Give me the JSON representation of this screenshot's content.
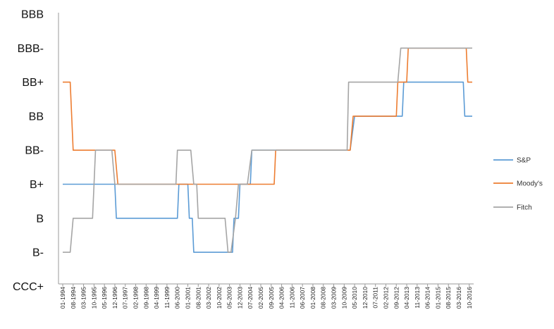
{
  "chart_data": {
    "type": "line",
    "title": "",
    "xlabel": "",
    "ylabel": "",
    "y_categories": [
      "CCC+",
      "B-",
      "B",
      "B+",
      "BB-",
      "BB",
      "BB+",
      "BBB-",
      "BBB"
    ],
    "x_ticks": [
      "01-1994",
      "08-1994",
      "03-1995",
      "10-1995",
      "05-1996",
      "12-1996",
      "07-1997",
      "02-1998",
      "09-1998",
      "04-1999",
      "11-1999",
      "06-2000",
      "01-2001",
      "08-2001",
      "03-2002",
      "10-2002",
      "05-2003",
      "12-2003",
      "07-2004",
      "02-2005",
      "09-2005",
      "04-2006",
      "11-2006",
      "06-2007",
      "01-2008",
      "08-2008",
      "03-2009",
      "10-2009",
      "05-2010",
      "12-2010",
      "07-2011",
      "02-2012",
      "09-2012",
      "04-2013",
      "11-2013",
      "06-2014",
      "01-2015",
      "08-2015",
      "03-2016",
      "10-2016"
    ],
    "x_range": [
      "01-1994",
      "12-2016"
    ],
    "legend_position": "right",
    "grid": false,
    "series": [
      {
        "name": "S&P",
        "color": "#5b9bd5",
        "points": [
          [
            "1994-01",
            "B+"
          ],
          [
            "1996-12",
            "B+"
          ],
          [
            "1997-01",
            "B"
          ],
          [
            "2000-06",
            "B"
          ],
          [
            "2000-07",
            "B+"
          ],
          [
            "2001-01",
            "B+"
          ],
          [
            "2001-02",
            "B"
          ],
          [
            "2001-04",
            "B"
          ],
          [
            "2001-05",
            "B-"
          ],
          [
            "2003-07",
            "B-"
          ],
          [
            "2003-08",
            "B"
          ],
          [
            "2003-11",
            "B"
          ],
          [
            "2003-12",
            "B+"
          ],
          [
            "2004-07",
            "B+"
          ],
          [
            "2004-08",
            "BB-"
          ],
          [
            "2010-02",
            "BB-"
          ],
          [
            "2010-05",
            "BB"
          ],
          [
            "2013-01",
            "BB"
          ],
          [
            "2013-02",
            "BB+"
          ],
          [
            "2016-06",
            "BB+"
          ],
          [
            "2016-07",
            "BB"
          ],
          [
            "2016-12",
            "BB"
          ]
        ]
      },
      {
        "name": "Moody's",
        "color": "#ed7d31",
        "points": [
          [
            "1994-01",
            "BB+"
          ],
          [
            "1994-06",
            "BB+"
          ],
          [
            "1994-08",
            "BB-"
          ],
          [
            "1996-12",
            "BB-"
          ],
          [
            "1997-02",
            "B+"
          ],
          [
            "2003-12",
            "B+"
          ],
          [
            "2004-01",
            "B+"
          ],
          [
            "2005-11",
            "B+"
          ],
          [
            "2005-12",
            "BB-"
          ],
          [
            "2010-02",
            "BB-"
          ],
          [
            "2010-04",
            "BB"
          ],
          [
            "2012-09",
            "BB"
          ],
          [
            "2012-10",
            "BB+"
          ],
          [
            "2013-04",
            "BB+"
          ],
          [
            "2013-05",
            "BBB-"
          ],
          [
            "2016-08",
            "BBB-"
          ],
          [
            "2016-09",
            "BB+"
          ],
          [
            "2016-12",
            "BB+"
          ]
        ]
      },
      {
        "name": "Fitch",
        "color": "#a5a5a5",
        "points": [
          [
            "1994-01",
            "B-"
          ],
          [
            "1994-06",
            "B-"
          ],
          [
            "1994-08",
            "B"
          ],
          [
            "1995-09",
            "B"
          ],
          [
            "1995-11",
            "BB-"
          ],
          [
            "1996-10",
            "BB-"
          ],
          [
            "1996-12",
            "B+"
          ],
          [
            "2000-05",
            "B+"
          ],
          [
            "2000-06",
            "BB-"
          ],
          [
            "2001-03",
            "BB-"
          ],
          [
            "2001-05",
            "B+"
          ],
          [
            "2001-07",
            "B+"
          ],
          [
            "2001-08",
            "B"
          ],
          [
            "2003-02",
            "B"
          ],
          [
            "2003-04",
            "B-"
          ],
          [
            "2003-06",
            "B-"
          ],
          [
            "2003-09",
            "B"
          ],
          [
            "2003-11",
            "B+"
          ],
          [
            "2004-05",
            "B+"
          ],
          [
            "2004-08",
            "BB-"
          ],
          [
            "2009-12",
            "BB-"
          ],
          [
            "2010-01",
            "BB+"
          ],
          [
            "2012-10",
            "BB+"
          ],
          [
            "2012-12",
            "BBB-"
          ],
          [
            "2016-12",
            "BBB-"
          ]
        ]
      }
    ]
  }
}
